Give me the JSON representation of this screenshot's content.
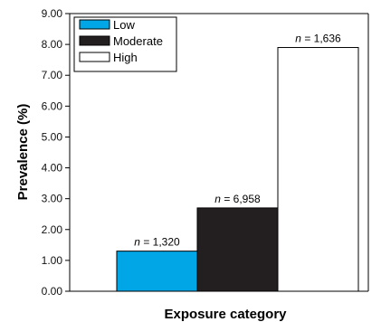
{
  "chart_data": {
    "type": "bar",
    "xlabel": "Exposure category",
    "ylabel": "Prevalence (%)",
    "ylim": [
      0,
      9
    ],
    "yticks": [
      "0.00",
      "1.00",
      "2.00",
      "3.00",
      "4.00",
      "5.00",
      "6.00",
      "7.00",
      "8.00",
      "9.00"
    ],
    "grid": false,
    "legend_position": "top-left",
    "series": [
      {
        "name": "Low",
        "value": 1.3,
        "label": "n = 1,320",
        "color": "#00a6e5"
      },
      {
        "name": "Moderate",
        "value": 2.7,
        "label": "n = 6,958",
        "color": "#231f20"
      },
      {
        "name": "High",
        "value": 7.9,
        "label": "n = 1,636",
        "color": "#ffffff"
      }
    ]
  }
}
